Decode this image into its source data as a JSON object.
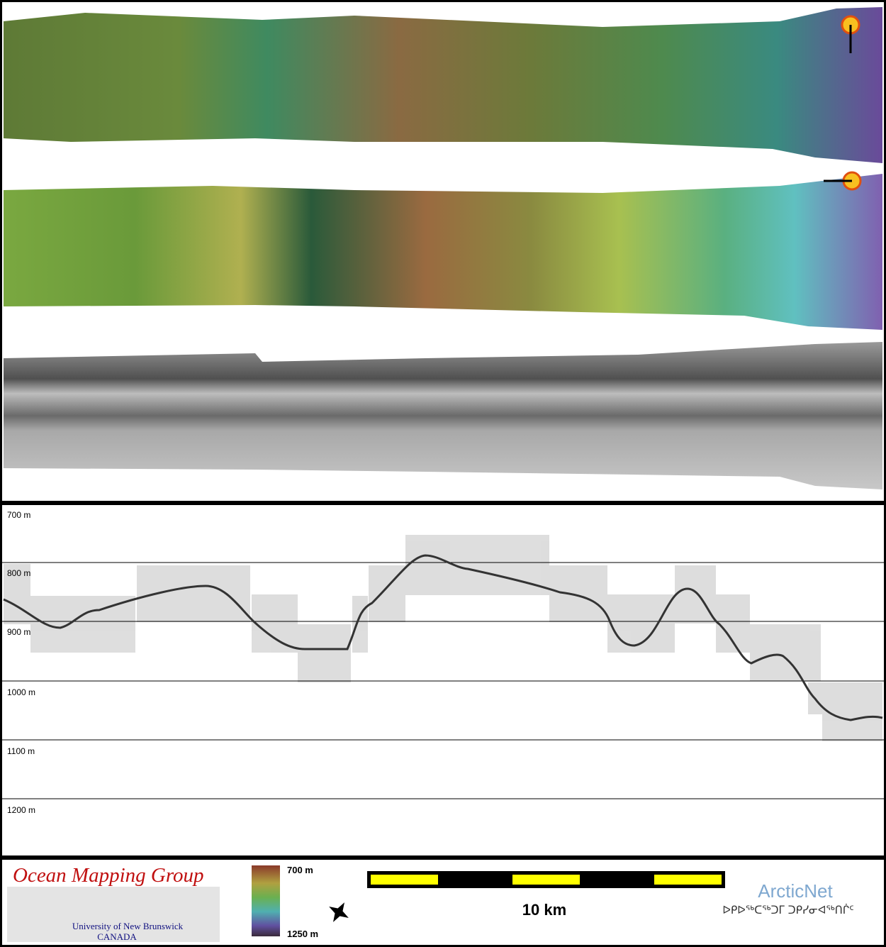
{
  "profile": {
    "depth_labels": [
      "700 m",
      "800 m",
      "900 m",
      "1000 m",
      "1100 m",
      "1200 m"
    ]
  },
  "footer": {
    "logo": {
      "title": "Ocean Mapping Group",
      "university": "University of New Brunswick",
      "country": "CANADA"
    },
    "colorbar": {
      "top_label": "700 m",
      "bottom_label": "1250 m"
    },
    "scale_bar": {
      "label": "10 km"
    },
    "partner": {
      "name": "ArcticNet",
      "syllabics": "ᐅᑭᐅᖅᑕᖅᑐᒥ ᑐᑭᓯᓂᐊᖅᑎᒌᑦ"
    }
  }
}
